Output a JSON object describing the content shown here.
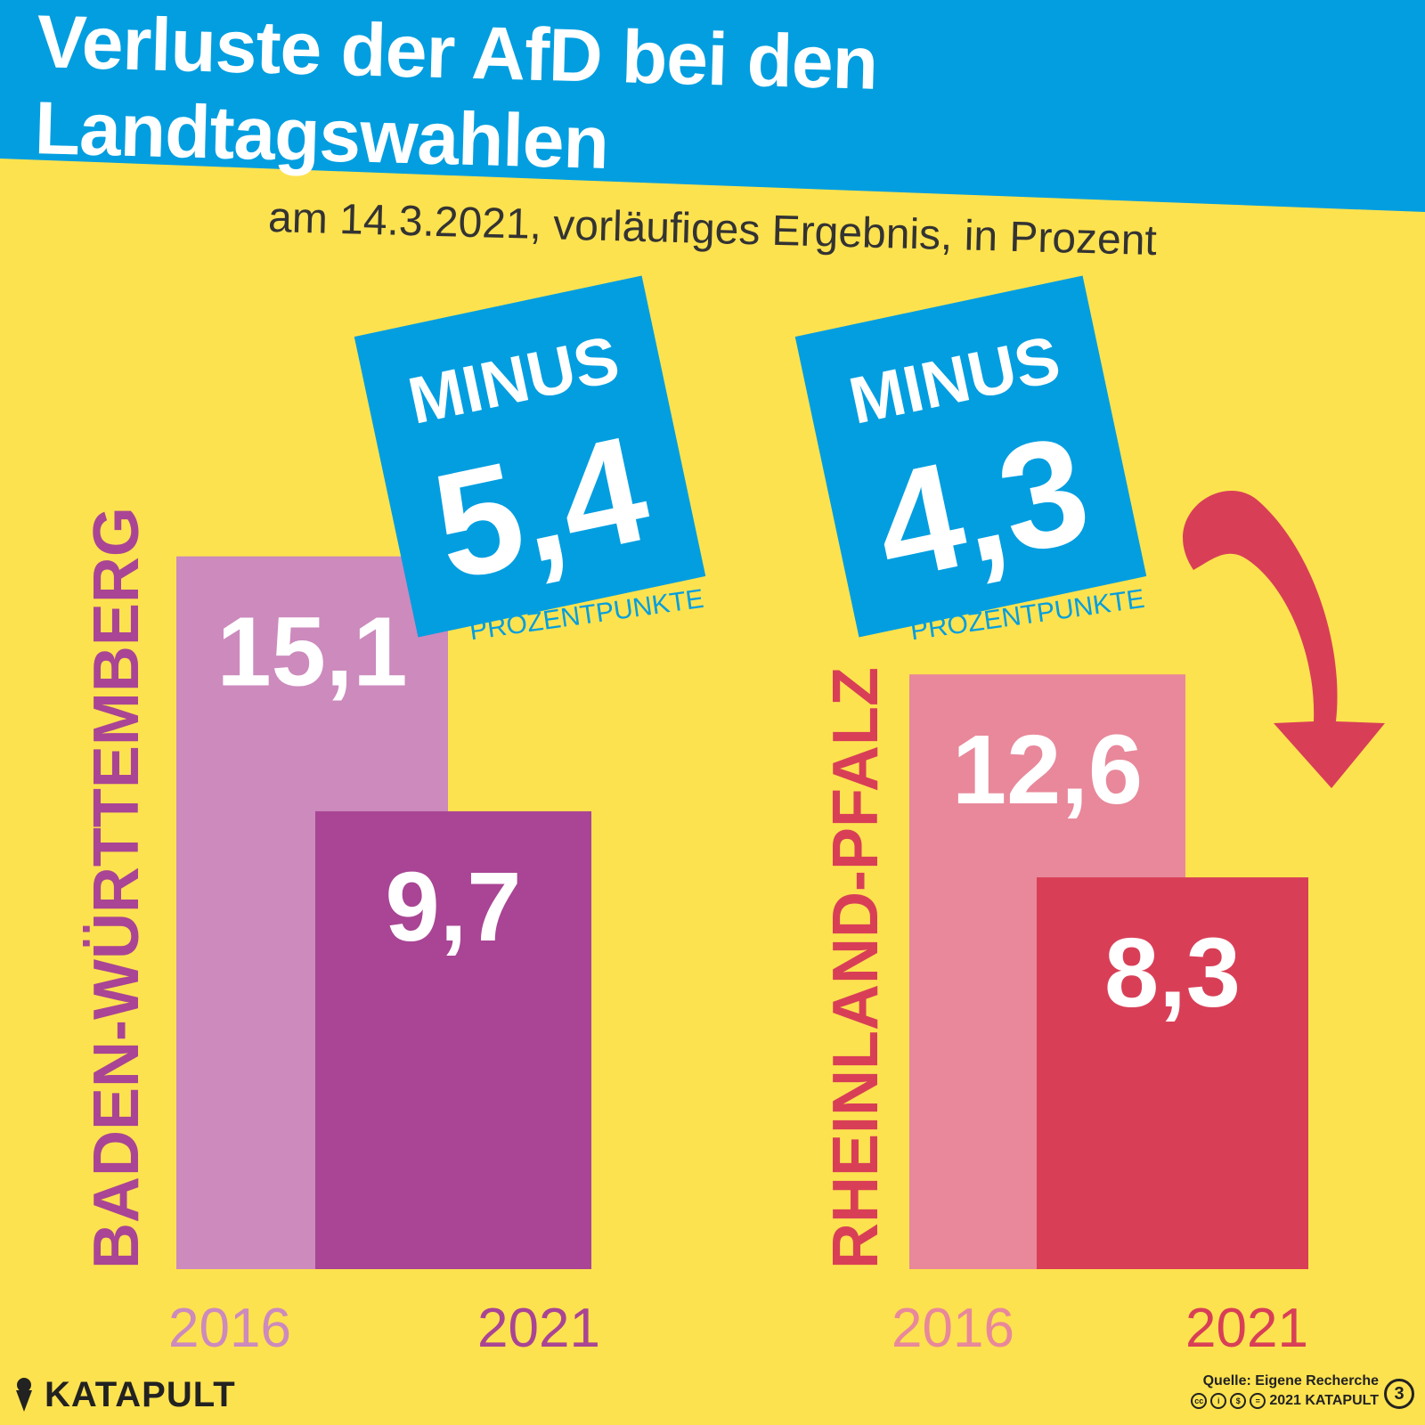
{
  "title": "Verluste der AfD bei den Landtagswahlen",
  "subtitle": "am 14.3.2021, vorläufiges Ergebnis, in Prozent",
  "footer": {
    "brand": "KATAPULT",
    "source": "Quelle: Eigene Recherche",
    "copyright": "2021 KATAPULT",
    "issue_badge": "3"
  },
  "colors": {
    "background": "#fde24f",
    "header_blue": "#029ee0",
    "bw_2016": "#cc8abd",
    "bw_2021": "#a94594",
    "rp_2016": "#e8889a",
    "rp_2021": "#d83f57",
    "arrow": "#d83f57"
  },
  "chart_data": [
    {
      "type": "bar",
      "group": "BADEN-WÜRTTEMBERG",
      "categories": [
        "2016",
        "2021"
      ],
      "values": [
        15.1,
        9.7
      ],
      "value_labels": [
        "15,1",
        "9,7"
      ],
      "change": {
        "prefix": "MINUS",
        "value": -5.4,
        "label": "5,4",
        "unit": "PROZENTPUNKTE"
      }
    },
    {
      "type": "bar",
      "group": "RHEINLAND-PFALZ",
      "categories": [
        "2016",
        "2021"
      ],
      "values": [
        12.6,
        8.3
      ],
      "value_labels": [
        "12,6",
        "8,3"
      ],
      "change": {
        "prefix": "MINUS",
        "value": -4.3,
        "label": "4,3",
        "unit": "PROZENTPUNKTE"
      }
    }
  ]
}
